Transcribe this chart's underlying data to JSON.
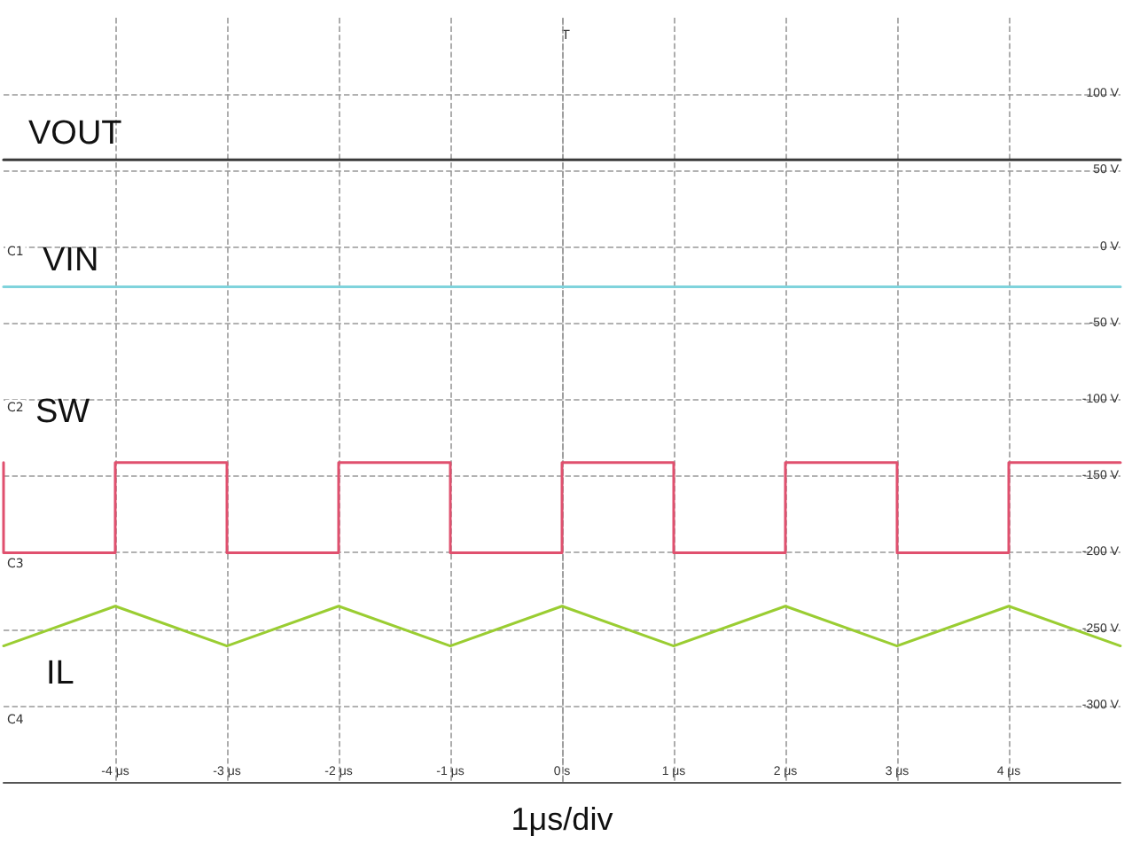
{
  "chart_data": {
    "type": "line",
    "xlabel": "1μs/div",
    "xlim": [
      -5,
      5
    ],
    "xticks": [
      {
        "value": -4,
        "label": "-4 μs"
      },
      {
        "value": -3,
        "label": "-3 μs"
      },
      {
        "value": -2,
        "label": "-2 μs"
      },
      {
        "value": -1,
        "label": "-1 μs"
      },
      {
        "value": 0,
        "label": "0 s"
      },
      {
        "value": 1,
        "label": "1 μs"
      },
      {
        "value": 2,
        "label": "2 μs"
      },
      {
        "value": 3,
        "label": "3 μs"
      },
      {
        "value": 4,
        "label": "4 μs"
      }
    ],
    "ylim": [
      -350,
      150
    ],
    "yticks": [
      {
        "value": 100,
        "label": "100 V"
      },
      {
        "value": 50,
        "label": "50 V"
      },
      {
        "value": 0,
        "label": "0 V"
      },
      {
        "value": -50,
        "label": "-50 V"
      },
      {
        "value": -100,
        "label": "-100 V"
      },
      {
        "value": -150,
        "label": "-150 V"
      },
      {
        "value": -200,
        "label": "-200 V"
      },
      {
        "value": -250,
        "label": "-250 V"
      },
      {
        "value": -300,
        "label": "-300 V"
      }
    ],
    "grid": true,
    "marker": "none",
    "line_style": "solid",
    "series": [
      {
        "name": "VOUT",
        "color": "#3a3a3a",
        "x": [
          -5,
          5
        ],
        "values": [
          57,
          57
        ]
      },
      {
        "name": "VIN",
        "color": "#7fd3dc",
        "x": [
          -5,
          5
        ],
        "values": [
          -26,
          -26
        ]
      },
      {
        "name": "SW",
        "color": "#e0506e",
        "x": [
          -5,
          -5,
          -4,
          -4,
          -3,
          -3,
          -2,
          -2,
          -1,
          -1,
          0,
          0,
          1,
          1,
          2,
          2,
          3,
          3,
          4,
          4,
          5
        ],
        "values": [
          -141,
          -200,
          -200,
          -141,
          -141,
          -200,
          -200,
          -141,
          -141,
          -200,
          -200,
          -141,
          -141,
          -200,
          -200,
          -141,
          -141,
          -200,
          -200,
          -141,
          -141
        ]
      },
      {
        "name": "IL",
        "color": "#9acd32",
        "x": [
          -5,
          -4,
          -3,
          -2,
          -1,
          0,
          1,
          2,
          3,
          4,
          5
        ],
        "values": [
          -261,
          -235,
          -261,
          -235,
          -261,
          -235,
          -261,
          -235,
          -261,
          -235,
          -261
        ]
      }
    ],
    "annotations": [
      "T",
      "C1",
      "C2",
      "C3",
      "C4"
    ]
  }
}
